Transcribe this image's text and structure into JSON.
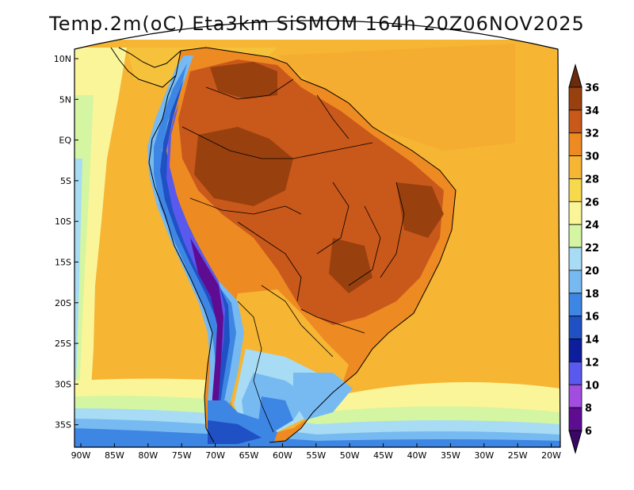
{
  "title": "Temp.2m(oC) Eta3km SiSMOM 164h 20Z06NOV2025",
  "map": {
    "lat_ticks": [
      "10N",
      "5N",
      "EQ",
      "5S",
      "10S",
      "15S",
      "20S",
      "25S",
      "30S",
      "35S"
    ],
    "lon_ticks": [
      "90W",
      "85W",
      "80W",
      "75W",
      "70W",
      "65W",
      "60W",
      "55W",
      "50W",
      "45W",
      "40W",
      "35W",
      "30W",
      "25W",
      "20W"
    ]
  },
  "colorbar": {
    "labels": [
      "36",
      "34",
      "32",
      "30",
      "28",
      "26",
      "24",
      "22",
      "20",
      "18",
      "16",
      "14",
      "12",
      "10",
      "8",
      "6"
    ],
    "colors": [
      "#6b2c0c",
      "#99400f",
      "#c9581b",
      "#ee8a22",
      "#f6b533",
      "#f6d94c",
      "#fbf59a",
      "#d4f5a2",
      "#a7dcf4",
      "#77baf2",
      "#3e86e3",
      "#1f51c4",
      "#0d1e9c",
      "#5a59ee",
      "#a24ce0",
      "#5e0d93",
      "#3a0766"
    ]
  },
  "chart_data": {
    "type": "heatmap",
    "title": "Temp.2m(oC) Eta3km SiSMOM 164h 20Z06NOV2025",
    "variable": "2 m air temperature",
    "units": "oC",
    "model": "Eta3km SiSMOM",
    "forecast_hour": "164h",
    "valid_time": "20Z06NOV2025",
    "lon_range": [
      -91,
      -20
    ],
    "lat_range": [
      -38,
      11
    ],
    "color_levels": [
      6,
      8,
      10,
      12,
      14,
      16,
      18,
      20,
      22,
      24,
      26,
      28,
      30,
      32,
      34,
      36
    ]
  }
}
